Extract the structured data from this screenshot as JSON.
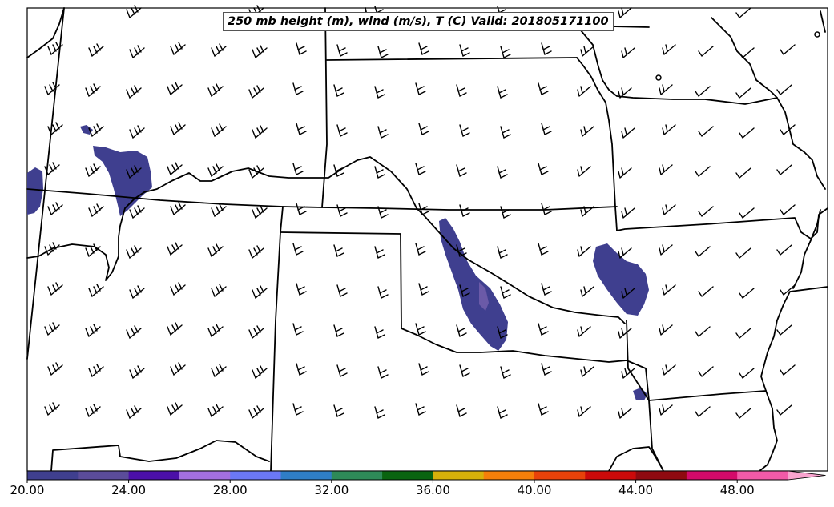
{
  "map": {
    "title": "250 mb height (m), wind (m/s), T (C) Valid: 201805171100"
  },
  "colorbar": {
    "colors": [
      "#3f3f8f",
      "#5b4c9a",
      "#4b0fa8",
      "#a46fe0",
      "#6b78f5",
      "#2f7ec6",
      "#2e8a58",
      "#0a6410",
      "#d8b10a",
      "#f57f0a",
      "#e8420a",
      "#cc0a0a",
      "#8f0a10",
      "#d40a6a",
      "#f25aa8",
      "#f9a4cf"
    ],
    "tick_labels": [
      "20.00",
      "24.00",
      "28.00",
      "32.00",
      "36.00",
      "40.00",
      "44.00",
      "48.00"
    ]
  },
  "legend_colors": {
    "temperature_blob": "#3f3f8f",
    "temperature_blob_inner": "#6b5aa8",
    "lines": "#000000"
  }
}
